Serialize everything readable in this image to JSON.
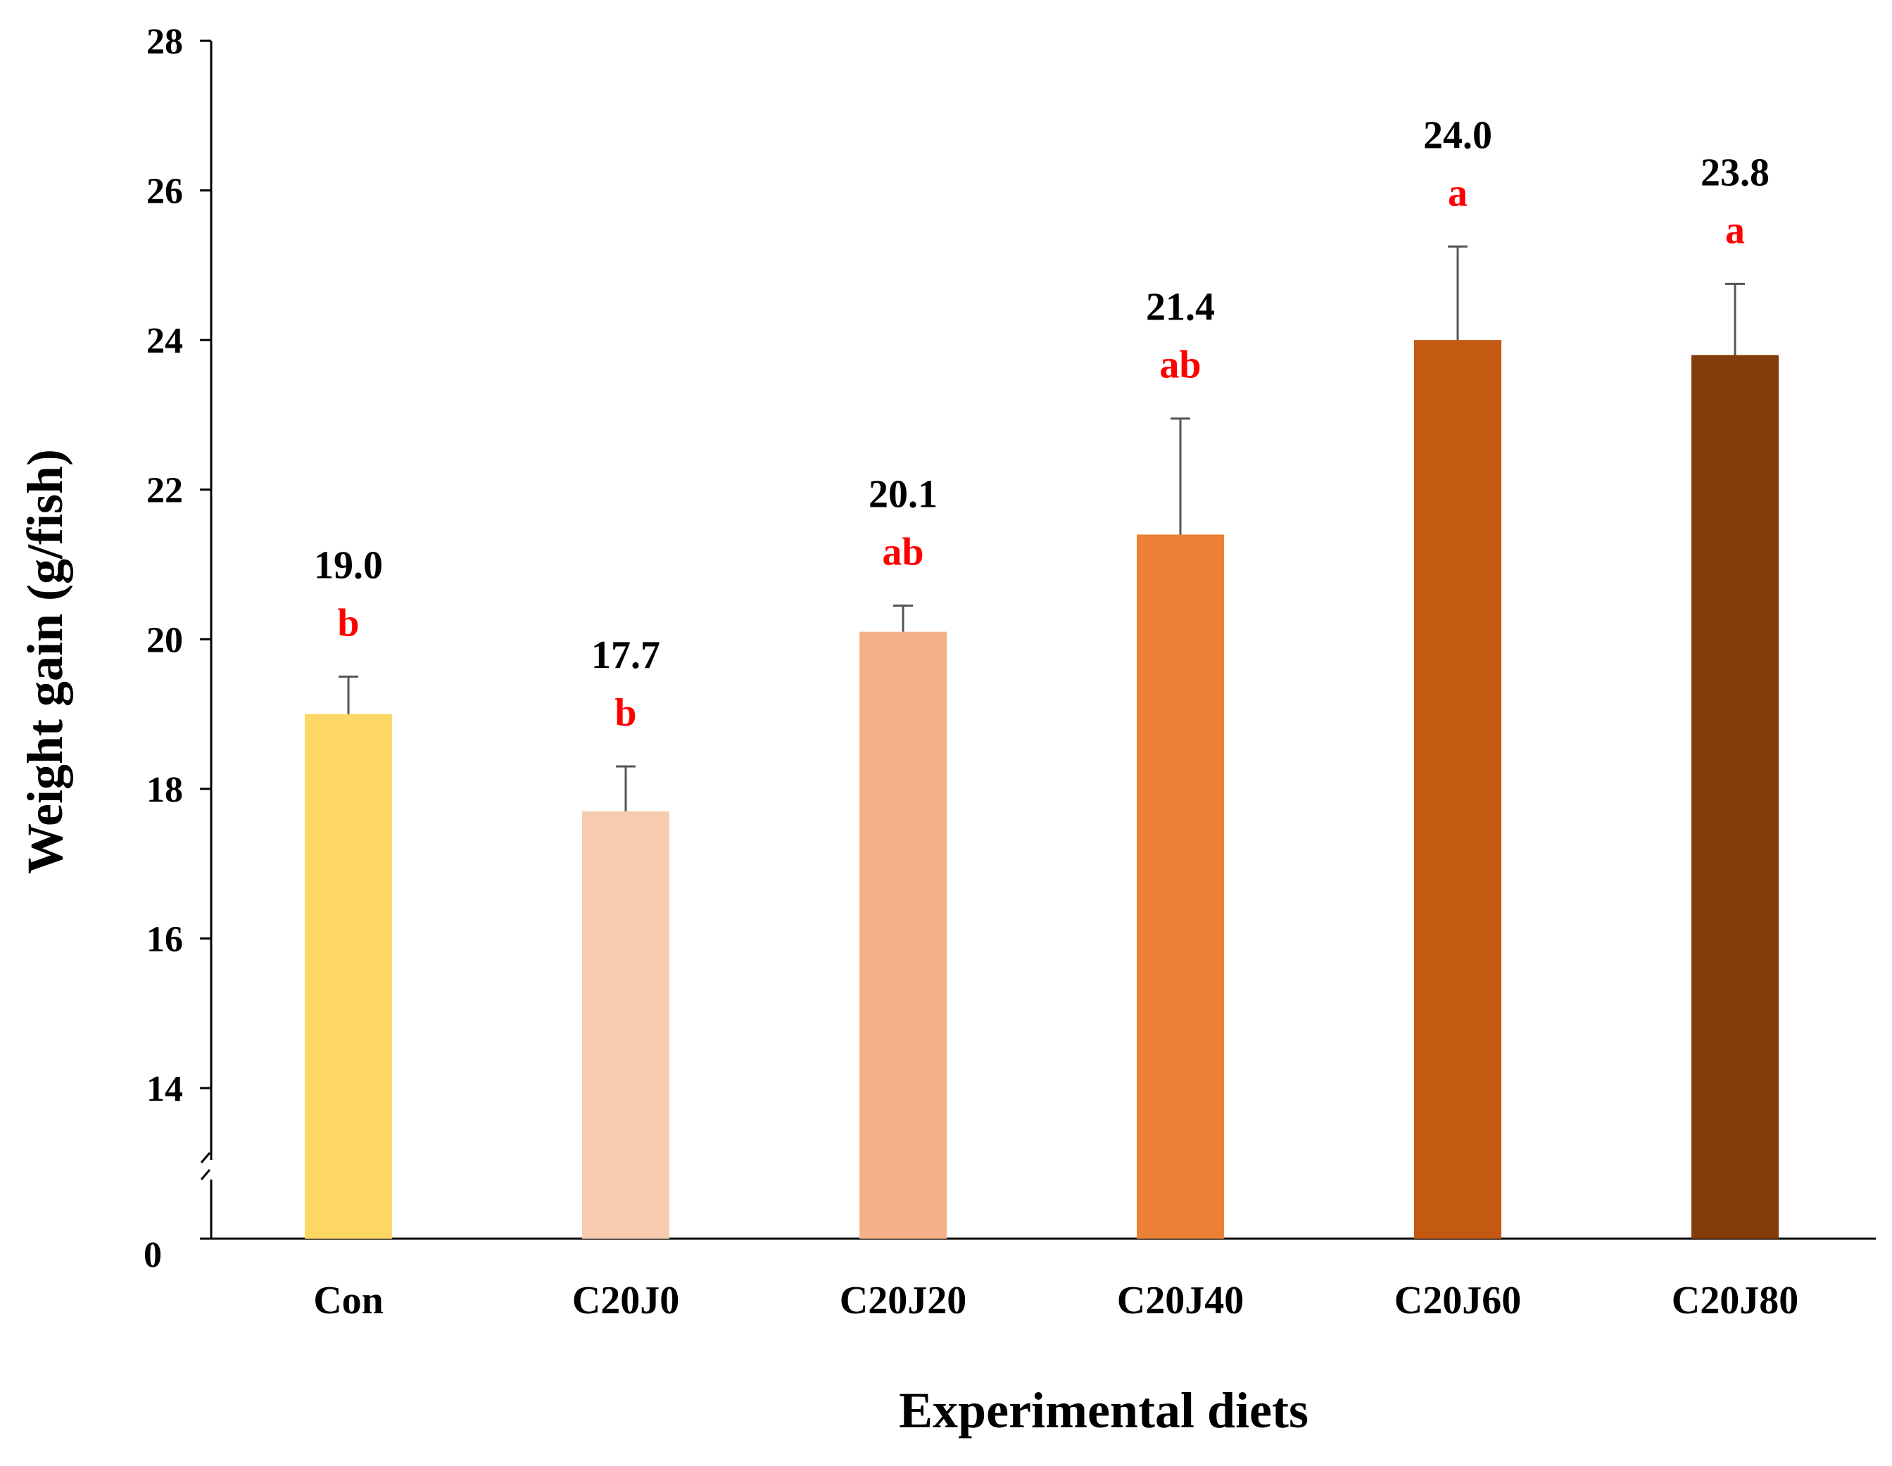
{
  "chart_data": {
    "type": "bar",
    "xlabel": "Experimental diets",
    "ylabel": "Weight gain (g/fish)",
    "categories": [
      "Con",
      "C20J0",
      "C20J20",
      "C20J40",
      "C20J60",
      "C20J80"
    ],
    "values": [
      19.0,
      17.7,
      20.1,
      21.4,
      24.0,
      23.8
    ],
    "value_labels": [
      "19.0",
      "17.7",
      "20.1",
      "21.4",
      "24.0",
      "23.8"
    ],
    "error_upper": [
      0.5,
      0.6,
      0.35,
      1.55,
      1.25,
      0.95
    ],
    "significance_letters": [
      "b",
      "b",
      "ab",
      "ab",
      "a",
      "a"
    ],
    "bar_colors": [
      "#FDD764",
      "#F7CBAE",
      "#F3B187",
      "#EC8035",
      "#C45A12",
      "#843C0C"
    ],
    "letter_color": "#FF0000",
    "y_ticks": [
      14,
      16,
      18,
      20,
      22,
      24,
      26,
      28
    ],
    "y_tick_labels": [
      "14",
      "16",
      "18",
      "20",
      "22",
      "24",
      "26",
      "28"
    ],
    "y_origin_label": "0",
    "ylim": [
      0,
      28
    ],
    "axis_break": true,
    "axis_break_below": 14,
    "grid": false,
    "legend": "none"
  }
}
